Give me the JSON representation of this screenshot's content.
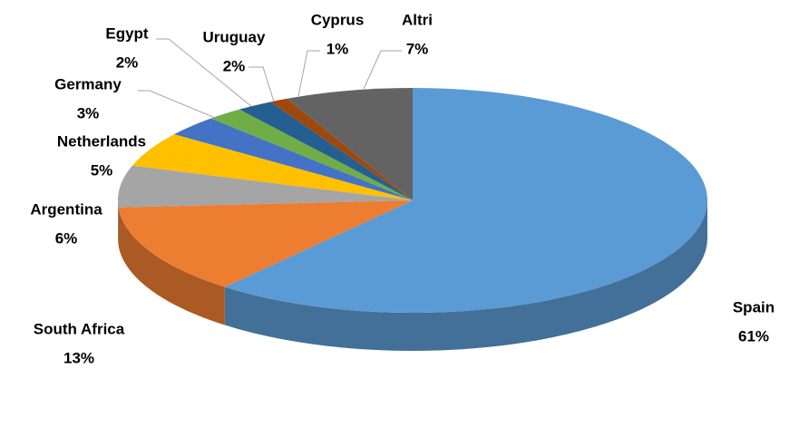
{
  "chart_data": {
    "type": "pie",
    "categories": [
      "Spain",
      "South Africa",
      "Argentina",
      "Netherlands",
      "Germany",
      "Egypt",
      "Uruguay",
      "Cyprus",
      "Altri"
    ],
    "values": [
      61,
      13,
      6,
      5,
      3,
      2,
      2,
      1,
      7
    ],
    "value_labels": [
      "61%",
      "13%",
      "6%",
      "5%",
      "3%",
      "2%",
      "2%",
      "1%",
      "7%"
    ],
    "colors": [
      "#5b9bd5",
      "#ed7d31",
      "#a5a5a5",
      "#ffc000",
      "#4472c4",
      "#70ad47",
      "#255e91",
      "#9e480e",
      "#636363"
    ]
  }
}
